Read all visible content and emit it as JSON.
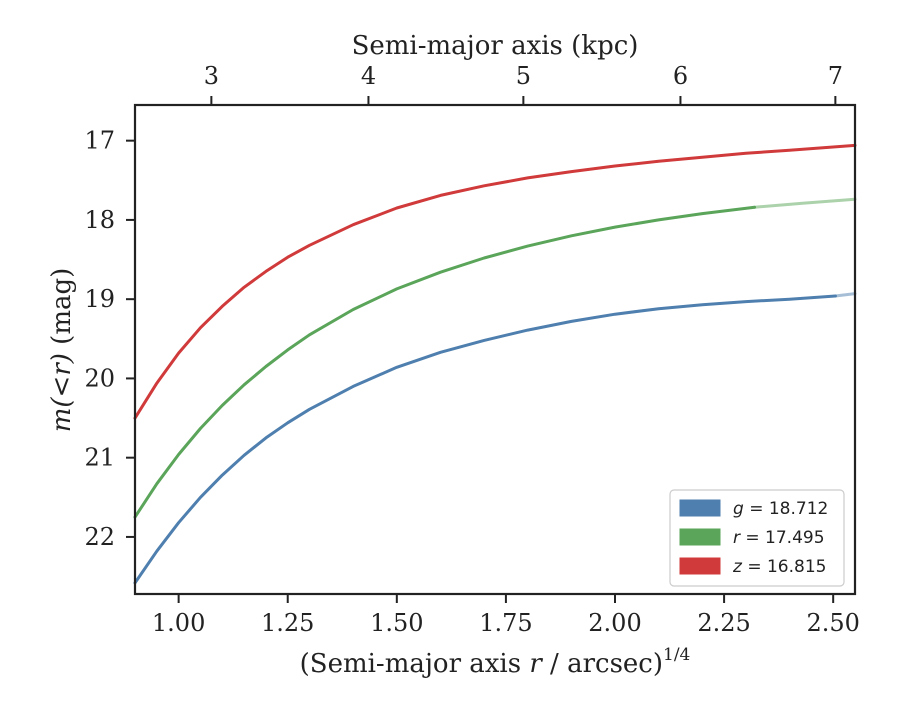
{
  "chart_data": {
    "type": "line",
    "xlabel": "(Semi-major axis r / arcsec)^1/4",
    "xlabel_parts": {
      "pre": "(Semi-major axis ",
      "var": "r",
      "post": " / arcsec)",
      "sup": "1/4"
    },
    "ylabel": "m(<r) (mag)",
    "ylabel_parts": {
      "var": "m(<r)",
      "unit": " (mag)"
    },
    "top_xlabel": "Semi-major axis (kpc)",
    "xlim": [
      0.9,
      2.55
    ],
    "ylim": [
      22.72,
      16.55
    ],
    "y_inverted": true,
    "xticks": [
      "1.00",
      "1.25",
      "1.50",
      "1.75",
      "2.00",
      "2.25",
      "2.50"
    ],
    "yticks": [
      "17",
      "18",
      "19",
      "20",
      "21",
      "22"
    ],
    "top_ticks": [
      "3",
      "4",
      "5",
      "6",
      "7"
    ],
    "top_tick_positions_x": [
      1.075,
      1.435,
      1.79,
      2.15,
      2.505
    ],
    "grid": false,
    "legend_position": "lower-right",
    "series": [
      {
        "name": "g = 18.712",
        "legend_var": "g",
        "legend_value": "18.712",
        "color": "#4e7fae",
        "x": [
          0.9,
          0.95,
          1.0,
          1.05,
          1.1,
          1.15,
          1.2,
          1.25,
          1.3,
          1.4,
          1.5,
          1.6,
          1.7,
          1.8,
          1.9,
          2.0,
          2.1,
          2.2,
          2.3,
          2.4,
          2.505
        ],
        "y": [
          22.58,
          22.18,
          21.82,
          21.5,
          21.22,
          20.97,
          20.75,
          20.56,
          20.39,
          20.1,
          19.86,
          19.67,
          19.52,
          19.39,
          19.28,
          19.19,
          19.12,
          19.07,
          19.03,
          19.0,
          18.96
        ],
        "extension_x": [
          2.505,
          2.55
        ],
        "extension_y": [
          18.96,
          18.93
        ]
      },
      {
        "name": "r = 17.495",
        "legend_var": "r",
        "legend_value": "17.495",
        "color": "#5aa55a",
        "x": [
          0.9,
          0.95,
          1.0,
          1.05,
          1.1,
          1.15,
          1.2,
          1.25,
          1.3,
          1.4,
          1.5,
          1.6,
          1.7,
          1.8,
          1.9,
          2.0,
          2.1,
          2.2,
          2.32
        ],
        "y": [
          21.75,
          21.33,
          20.96,
          20.63,
          20.34,
          20.08,
          19.85,
          19.64,
          19.45,
          19.13,
          18.87,
          18.66,
          18.48,
          18.33,
          18.2,
          18.09,
          18.0,
          17.92,
          17.84
        ],
        "extension_x": [
          2.32,
          2.43,
          2.55
        ],
        "extension_y": [
          17.84,
          17.79,
          17.74
        ]
      },
      {
        "name": "z = 16.815",
        "legend_var": "z",
        "legend_value": "16.815",
        "color": "#d03a3a",
        "x": [
          0.9,
          0.95,
          1.0,
          1.05,
          1.1,
          1.15,
          1.2,
          1.25,
          1.3,
          1.4,
          1.5,
          1.6,
          1.7,
          1.8,
          1.9,
          2.0,
          2.1,
          2.2,
          2.3,
          2.4,
          2.55
        ],
        "y": [
          20.5,
          20.06,
          19.68,
          19.36,
          19.09,
          18.85,
          18.65,
          18.47,
          18.32,
          18.06,
          17.85,
          17.69,
          17.57,
          17.47,
          17.39,
          17.32,
          17.26,
          17.21,
          17.16,
          17.12,
          17.06
        ],
        "extension_x": [],
        "extension_y": []
      }
    ]
  }
}
